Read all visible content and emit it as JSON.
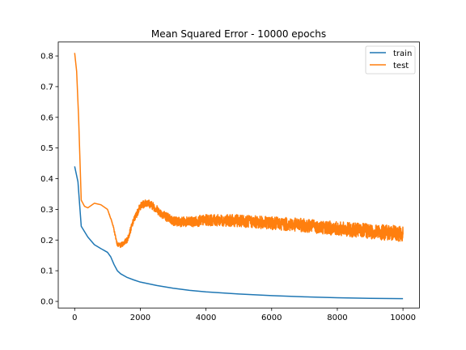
{
  "chart_data": {
    "type": "line",
    "title": "Mean Squared Error - 10000 epochs",
    "xlabel": "",
    "ylabel": "",
    "xlim": [
      -500,
      10500
    ],
    "ylim": [
      -0.0215,
      0.8455
    ],
    "xticks": [
      0,
      2000,
      4000,
      6000,
      8000,
      10000
    ],
    "xtick_labels": [
      "0",
      "2000",
      "4000",
      "6000",
      "8000",
      "10000"
    ],
    "yticks": [
      0.0,
      0.1,
      0.2,
      0.3,
      0.4,
      0.5,
      0.6,
      0.7,
      0.8
    ],
    "ytick_labels": [
      "0.0",
      "0.1",
      "0.2",
      "0.3",
      "0.4",
      "0.5",
      "0.6",
      "0.7",
      "0.8"
    ],
    "grid": false,
    "legend_position": "top-right",
    "series": [
      {
        "name": "train",
        "color": "#1f77b4",
        "x": [
          0,
          100,
          200,
          400,
          600,
          800,
          1000,
          1100,
          1200,
          1300,
          1400,
          1600,
          1800,
          2000,
          2500,
          3000,
          3500,
          4000,
          5000,
          6000,
          7000,
          8000,
          9000,
          10000
        ],
        "y": [
          0.44,
          0.39,
          0.245,
          0.21,
          0.185,
          0.172,
          0.16,
          0.145,
          0.12,
          0.1,
          0.09,
          0.078,
          0.07,
          0.063,
          0.052,
          0.043,
          0.036,
          0.031,
          0.024,
          0.019,
          0.015,
          0.012,
          0.01,
          0.009
        ]
      },
      {
        "name": "test",
        "color": "#ff7f0e",
        "x": [
          0,
          60,
          120,
          200,
          300,
          400,
          600,
          800,
          1000,
          1150,
          1300,
          1400,
          1600,
          1800,
          2000,
          2200,
          2400,
          2600,
          3000,
          3500,
          4000,
          5000,
          6000,
          7000,
          8000,
          9000,
          10000
        ],
        "y": [
          0.81,
          0.75,
          0.6,
          0.33,
          0.31,
          0.305,
          0.32,
          0.315,
          0.3,
          0.255,
          0.185,
          0.182,
          0.2,
          0.265,
          0.31,
          0.323,
          0.31,
          0.29,
          0.262,
          0.258,
          0.265,
          0.263,
          0.255,
          0.248,
          0.237,
          0.228,
          0.22
        ],
        "noise": [
          [
            0,
            0
          ],
          [
            1000,
            0
          ],
          [
            1400,
            0.008
          ],
          [
            2000,
            0.012
          ],
          [
            3000,
            0.016
          ],
          [
            5000,
            0.02
          ],
          [
            8000,
            0.023
          ],
          [
            10000,
            0.026
          ]
        ]
      }
    ]
  }
}
